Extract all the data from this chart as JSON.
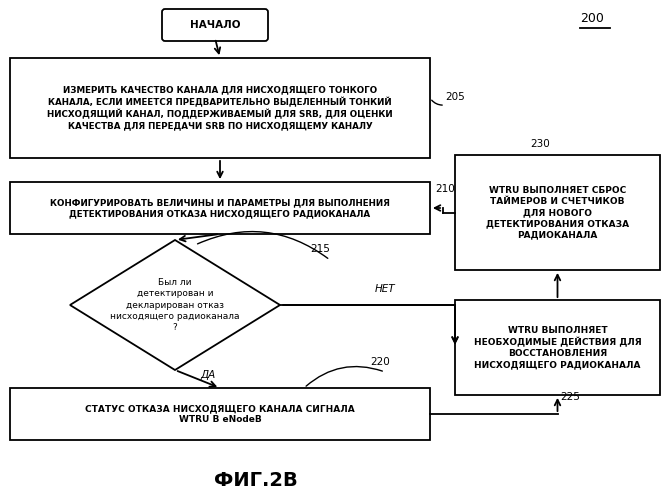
{
  "bg_color": "#ffffff",
  "title": "ФИГ.2В",
  "title_fontsize": 14,
  "nodes": {
    "start_text": "НАЧАЛО",
    "box205_text": "ИЗМЕРИТЬ КАЧЕСТВО КАНАЛА ДЛЯ НИСХОДЯЩЕГО ТОНКОГО\nКАНАЛА, ЕСЛИ ИМЕЕТСЯ ПРЕДВАРИТЕЛЬНО ВЫДЕЛЕННЫЙ ТОНКИЙ\nНИСХОДЯЩИЙ КАНАЛ, ПОДДЕРЖИВАЕМЫЙ ДЛЯ SRB, ДЛЯ ОЦЕНКИ\nКАЧЕСТВА ДЛЯ ПЕРЕДАЧИ SRB ПО НИСХОДЯЩЕМУ КАНАЛУ",
    "box210_text": "КОНФИГУРИРОВАТЬ ВЕЛИЧИНЫ И ПАРАМЕТРЫ ДЛЯ ВЫПОЛНЕНИЯ\nДЕТЕКТИРОВАНИЯ ОТКАЗА НИСХОДЯЩЕГО РАДИОКАНАЛА",
    "diamond215_text": "Был ли\nдетектирован и\nдекларирован отказ\nнисходящего радиоканала\n?",
    "box220_text": "СТАТУС ОТКАЗА НИСХОДЯЩЕГО КАНАЛА СИГНАЛА\nWTRU В eNodeB",
    "box225_text": "WTRU ВЫПОЛНЯЕТ\nНЕОБХОДИМЫЕ ДЕЙСТВИЯ ДЛЯ\nВОССТАНОВЛЕНИЯ\nНИСХОДЯЩЕГО РАДИОКАНАЛА",
    "box230_text": "WTRU ВЫПОЛНЯЕТ СБРОС\nТАЙМЕРОВ И СЧЕТЧИКОВ\nДЛЯ НОВОГО\nДЕТЕКТИРОВАНИЯ ОТКАЗА\nРАДИОКАНАЛА"
  },
  "label_200": "200",
  "label_205": "205",
  "label_210": "210",
  "label_215": "215",
  "label_220": "220",
  "label_225": "225",
  "label_230": "230",
  "label_net": "НЕТ",
  "label_da": "ДА"
}
